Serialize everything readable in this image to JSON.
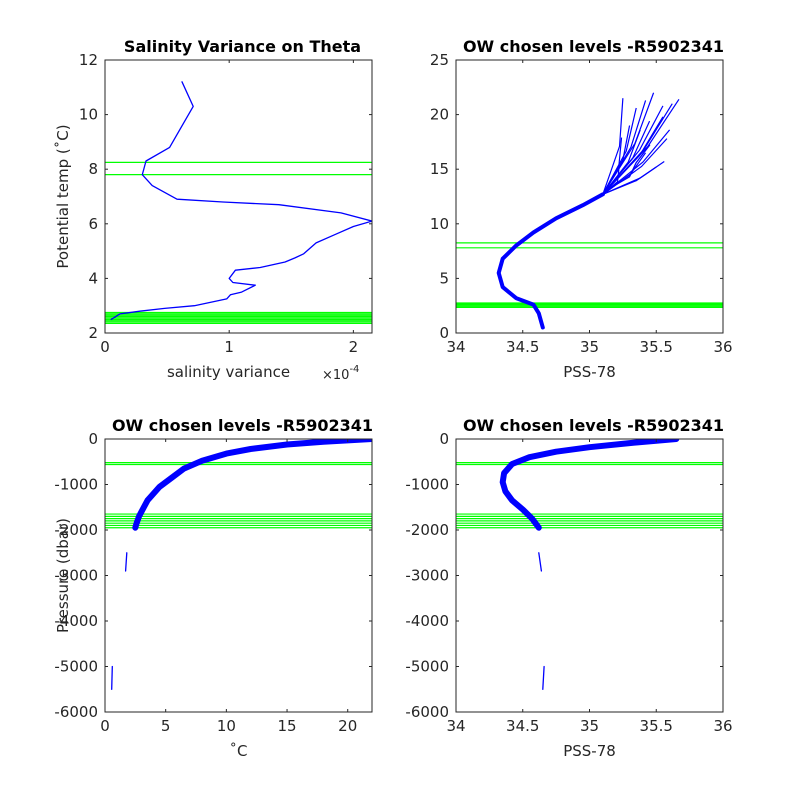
{
  "colors": {
    "profile": "#0000ff",
    "levels": "#00ff00",
    "axis": "#262626",
    "background": "#ffffff"
  },
  "chart_data": [
    {
      "type": "line",
      "title": "Salinity Variance on Theta",
      "xlabel": "salinity variance",
      "x_multiplier_text": "×10",
      "x_multiplier_exponent": "-4",
      "ylabel": "Potential temp (˚C)",
      "xlim": [
        0,
        2.15
      ],
      "ylim": [
        2,
        12
      ],
      "xticks": [
        0,
        1,
        2
      ],
      "xtick_labels": [
        "0",
        "1",
        "2"
      ],
      "yticks": [
        2,
        4,
        6,
        8,
        10,
        12
      ],
      "ytick_labels": [
        "2",
        "4",
        "6",
        "8",
        "10",
        "12"
      ],
      "grid": false,
      "x_units_note": "x values in units of 1e-4",
      "series": [
        {
          "x": [
            0.62,
            0.71,
            0.52,
            0.33,
            0.3,
            0.38,
            0.58,
            0.95,
            1.4,
            1.9,
            2.15,
            2.0,
            1.85,
            1.7,
            1.6,
            1.53,
            1.45,
            1.25,
            1.05,
            1.0,
            1.03,
            1.21,
            1.1,
            1.01,
            0.98,
            0.72,
            0.48,
            0.28,
            0.12,
            0.05
          ],
          "y": [
            11.2,
            10.3,
            8.8,
            8.3,
            7.8,
            7.4,
            6.9,
            6.8,
            6.7,
            6.4,
            6.1,
            5.9,
            5.6,
            5.3,
            4.9,
            4.75,
            4.6,
            4.4,
            4.3,
            4.0,
            3.85,
            3.75,
            3.5,
            3.4,
            3.25,
            3.0,
            2.9,
            2.8,
            2.7,
            2.5
          ]
        }
      ],
      "chosen_levels": [
        8.25,
        7.8,
        2.75,
        2.7,
        2.65,
        2.6,
        2.55,
        2.5,
        2.45,
        2.4,
        2.35
      ]
    },
    {
      "type": "line",
      "title": "OW chosen levels -R5902341",
      "xlabel": "PSS-78",
      "ylabel": "",
      "xlim": [
        34,
        36
      ],
      "ylim": [
        0,
        25
      ],
      "xticks": [
        34,
        34.5,
        35,
        35.5,
        36
      ],
      "xtick_labels": [
        "34",
        "34.5",
        "35",
        "35.5",
        "36"
      ],
      "yticks": [
        0,
        5,
        10,
        15,
        20,
        25
      ],
      "ytick_labels": [
        "0",
        "5",
        "10",
        "15",
        "20",
        "25"
      ],
      "grid": false,
      "series": [
        {
          "x": [
            34.65,
            34.62,
            34.58,
            34.45,
            34.35,
            34.32,
            34.35,
            34.45,
            34.58,
            34.75,
            34.95,
            35.1
          ],
          "y": [
            0.5,
            1.8,
            2.6,
            3.2,
            4.2,
            5.5,
            6.8,
            8.0,
            9.2,
            10.5,
            11.7,
            12.7
          ]
        },
        {
          "x": [
            35.1,
            35.2,
            35.3,
            35.35,
            35.45
          ],
          "y": [
            12.7,
            13.6,
            14.3,
            15.6,
            17.2
          ]
        }
      ],
      "fan_endpoints": [
        {
          "x": 35.25,
          "y": 21.5
        },
        {
          "x": 35.35,
          "y": 20.6
        },
        {
          "x": 35.42,
          "y": 21.3
        },
        {
          "x": 35.48,
          "y": 22.0
        },
        {
          "x": 35.55,
          "y": 20.8
        },
        {
          "x": 35.62,
          "y": 21.0
        },
        {
          "x": 35.67,
          "y": 21.4
        },
        {
          "x": 35.6,
          "y": 18.6
        },
        {
          "x": 35.58,
          "y": 17.8
        },
        {
          "x": 35.56,
          "y": 15.7
        },
        {
          "x": 35.5,
          "y": 15.2
        },
        {
          "x": 35.45,
          "y": 19.4
        },
        {
          "x": 35.38,
          "y": 18.6
        },
        {
          "x": 35.3,
          "y": 19.0
        },
        {
          "x": 35.22,
          "y": 15.0
        },
        {
          "x": 35.24,
          "y": 17.9
        },
        {
          "x": 35.42,
          "y": 16.5
        },
        {
          "x": 35.55,
          "y": 19.8
        }
      ],
      "chosen_levels": [
        8.25,
        7.8,
        2.75,
        2.65,
        2.55,
        2.45,
        2.35
      ]
    },
    {
      "type": "line",
      "title": "OW chosen levels -R5902341",
      "xlabel": "˚C",
      "ylabel": "Pressure (dbar)",
      "xlim": [
        0,
        22
      ],
      "ylim": [
        -6000,
        0
      ],
      "xticks": [
        0,
        5,
        10,
        15,
        20
      ],
      "xtick_labels": [
        "0",
        "5",
        "10",
        "15",
        "20"
      ],
      "yticks": [
        -6000,
        -5000,
        -4000,
        -3000,
        -2000,
        -1000,
        0
      ],
      "ytick_labels": [
        "-6000",
        "-5000",
        "-4000",
        "-3000",
        "-2000",
        "-1000",
        "0"
      ],
      "grid": false,
      "series": [
        {
          "x": [
            22,
            20,
            18,
            15,
            12,
            10,
            8,
            6.5,
            5.5,
            4.5,
            4.0,
            3.5,
            3.2,
            3.0,
            2.8,
            2.6,
            2.5
          ],
          "y": [
            0,
            -30,
            -60,
            -120,
            -220,
            -320,
            -480,
            -650,
            -850,
            -1050,
            -1200,
            -1350,
            -1500,
            -1600,
            -1700,
            -1850,
            -1950
          ]
        },
        {
          "x": [
            1.8,
            1.7
          ],
          "y": [
            -2500,
            -2900
          ]
        },
        {
          "x": [
            0.6,
            0.55
          ],
          "y": [
            -5000,
            -5500
          ]
        }
      ],
      "chosen_levels": [
        -520,
        -560,
        -1650,
        -1700,
        -1750,
        -1800,
        -1850,
        -1900,
        -1950
      ]
    },
    {
      "type": "line",
      "title": "OW chosen levels -R5902341",
      "xlabel": "PSS-78",
      "ylabel": "",
      "xlim": [
        34,
        36
      ],
      "ylim": [
        -6000,
        0
      ],
      "xticks": [
        34,
        34.5,
        35,
        35.5,
        36
      ],
      "xtick_labels": [
        "34",
        "34.5",
        "35",
        "35.5",
        "36"
      ],
      "yticks": [
        -6000,
        -5000,
        -4000,
        -3000,
        -2000,
        -1000,
        0
      ],
      "ytick_labels": [
        "-6000",
        "-5000",
        "-4000",
        "-3000",
        "-2000",
        "-1000",
        "0"
      ],
      "grid": false,
      "series": [
        {
          "x": [
            35.65,
            35.5,
            35.3,
            35.0,
            34.75,
            34.55,
            34.42,
            34.36,
            34.35,
            34.37,
            34.42,
            34.5,
            34.57,
            34.62
          ],
          "y": [
            0,
            -40,
            -90,
            -180,
            -280,
            -400,
            -550,
            -750,
            -950,
            -1150,
            -1350,
            -1550,
            -1750,
            -1950
          ]
        },
        {
          "x": [
            34.62,
            34.64
          ],
          "y": [
            -2500,
            -2900
          ]
        },
        {
          "x": [
            34.66,
            34.65
          ],
          "y": [
            -5000,
            -5500
          ]
        }
      ],
      "chosen_levels": [
        -520,
        -560,
        -1650,
        -1700,
        -1750,
        -1800,
        -1850,
        -1900,
        -1950
      ]
    }
  ]
}
